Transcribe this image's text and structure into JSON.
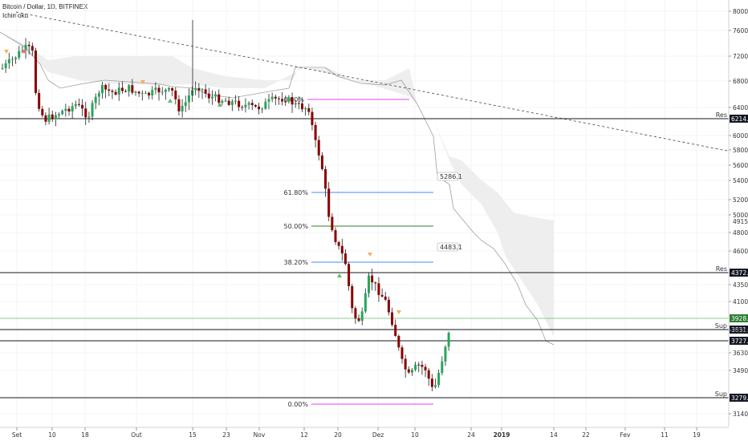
{
  "header": {
    "symbol": "Bitcoin / Dollar, 1D, BITFINEX",
    "indicator": "Ichimoku"
  },
  "chart_data": {
    "type": "candlestick",
    "y_ticks": [
      8000,
      7600,
      7200,
      6800,
      6400,
      6000,
      5800,
      5600,
      5400,
      5200,
      5000,
      4800,
      4600,
      4350,
      4100,
      3830,
      3630,
      3490,
      3140
    ],
    "x_ticks": [
      "Set",
      "10",
      "18",
      "Out",
      "15",
      "23",
      "Nov",
      "12",
      "20",
      "Dez",
      "10",
      "24",
      "2019",
      "14",
      "22",
      "Fev",
      "11",
      "19"
    ],
    "price_tags": [
      {
        "value": "6214.5",
        "color": "#131722",
        "side_label": "Res",
        "side_color": "#b71c1c"
      },
      {
        "value": "4915.1",
        "color": "none",
        "side_label": "",
        "side_color": ""
      },
      {
        "value": "4372.7",
        "color": "#131722",
        "side_label": "Res",
        "side_color": "#b71c1c"
      },
      {
        "value": "3928.9",
        "color": "#2e7d32",
        "side_label": "",
        "side_color": ""
      },
      {
        "value": "3831.1",
        "color": "#131722",
        "side_label": "Sup",
        "side_color": "#2e7d32"
      },
      {
        "value": "3727.4",
        "color": "#131722",
        "side_label": "",
        "side_color": ""
      },
      {
        "value": "3279.3",
        "color": "#131722",
        "side_label": "Sup",
        "side_color": "#2e7d32"
      }
    ],
    "fib_levels": [
      {
        "label": "0.00%",
        "color": "#e040fb"
      },
      {
        "label": "61.80%",
        "color": "#448aff"
      },
      {
        "label": "50.00%",
        "color": "#2e7d32"
      },
      {
        "label": "38.20%",
        "color": "#448aff"
      },
      {
        "label": "0.00%",
        "color": "#e040fb"
      }
    ],
    "cloud_labels": [
      "5286.1",
      "4483.1"
    ],
    "colors": {
      "up": "#26a65b",
      "down": "#8b0000",
      "cloud": "#eeeeee",
      "cloud_line": "#9e9e9e"
    }
  }
}
